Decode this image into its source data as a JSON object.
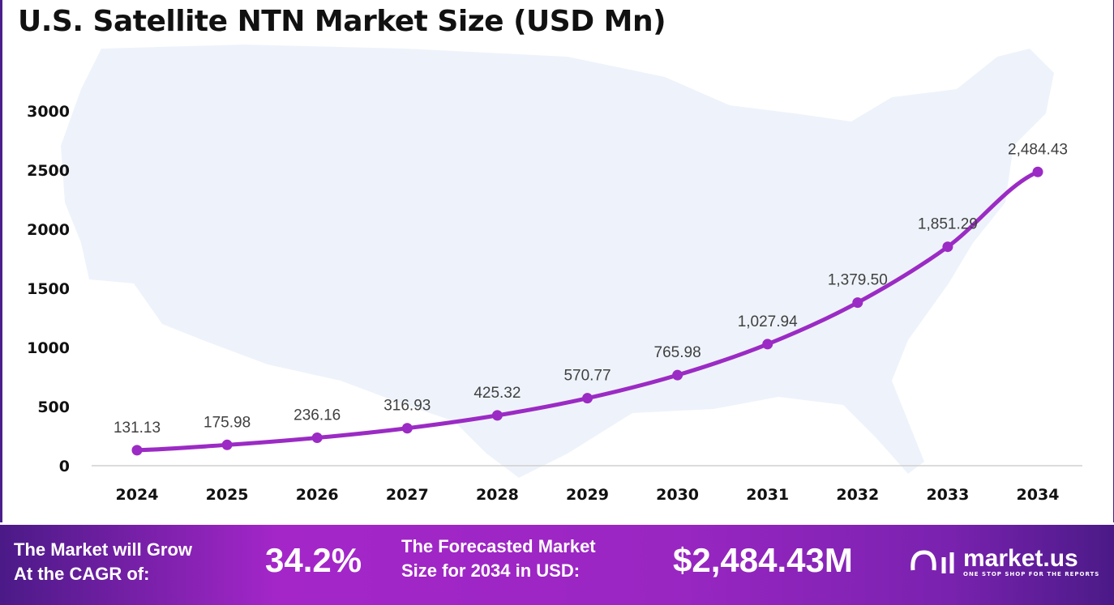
{
  "chart_data": {
    "type": "line",
    "title": "U.S. Satellite NTN Market Size (USD Mn)",
    "categories": [
      "2024",
      "2025",
      "2026",
      "2027",
      "2028",
      "2029",
      "2030",
      "2031",
      "2032",
      "2033",
      "2034"
    ],
    "values": [
      131.13,
      175.98,
      236.16,
      316.93,
      425.32,
      570.77,
      765.98,
      1027.94,
      1379.5,
      1851.29,
      2484.43
    ],
    "data_labels": [
      "131.13",
      "175.98",
      "236.16",
      "316.93",
      "425.32",
      "570.77",
      "765.98",
      "1,027.94",
      "1,379.50",
      "1,851.29",
      "2,484.43"
    ],
    "yticks": [
      0,
      500,
      1000,
      1500,
      2000,
      2500,
      3000
    ],
    "ylim": [
      0,
      3000
    ],
    "grid": false,
    "line_color": "#9b2bc4"
  },
  "banner": {
    "cagr_label_1": "The Market will Grow",
    "cagr_label_2": "At the CAGR of:",
    "cagr_value": "34.2%",
    "forecast_label_1": "The Forecasted Market",
    "forecast_label_2": "Size for 2034 in USD:",
    "forecast_value": "$2,484.43M",
    "brand": "market.us",
    "tagline": "ONE STOP SHOP FOR THE REPORTS"
  }
}
